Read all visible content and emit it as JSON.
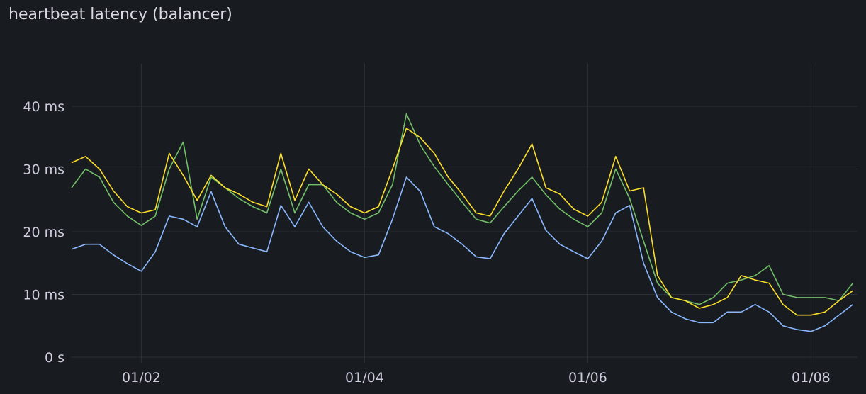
{
  "panel": {
    "title": "heartbeat latency (balancer)"
  },
  "chart_data": {
    "type": "line",
    "title": "heartbeat latency (balancer)",
    "xlabel": "",
    "ylabel": "",
    "unit": "ms",
    "ylim": [
      0,
      46
    ],
    "yticks": [
      {
        "value": 0,
        "label": "0 s"
      },
      {
        "value": 10,
        "label": "10 ms"
      },
      {
        "value": 20,
        "label": "20 ms"
      },
      {
        "value": 30,
        "label": "30 ms"
      },
      {
        "value": 40,
        "label": "40 ms"
      }
    ],
    "xticks": [
      {
        "value": "01/02 00:00",
        "label": "01/02"
      },
      {
        "value": "01/04 00:00",
        "label": "01/04"
      },
      {
        "value": "01/06 00:00",
        "label": "01/06"
      },
      {
        "value": "01/08 00:00",
        "label": "01/08"
      }
    ],
    "xlim": [
      "01/01 09:00",
      "01/08 10:00"
    ],
    "grid": true,
    "legend": "none",
    "x_start": "01/01 09:00",
    "x_step_hours": 3,
    "series": [
      {
        "color": "#73bf69",
        "values": [
          27,
          30,
          28.7,
          24.7,
          22.5,
          21,
          22.5,
          30,
          34.3,
          22,
          28.7,
          27,
          25.3,
          24,
          23,
          30,
          23,
          27.5,
          27.5,
          24.7,
          23,
          22,
          23,
          27.5,
          38.8,
          33.8,
          30.4,
          27.5,
          24.7,
          22,
          21.4,
          24,
          26.5,
          28.7,
          25.9,
          23.6,
          22,
          20.8,
          23,
          30,
          25.3,
          18.5,
          11.8,
          9.5,
          9,
          8.4,
          9.5,
          11.8,
          12.3,
          13,
          14.6,
          10,
          9.5,
          9.5,
          9.5,
          9,
          11.8
        ]
      },
      {
        "color": "#fade2a",
        "values": [
          31,
          32,
          30,
          26.5,
          24,
          23,
          23.5,
          32.5,
          29,
          25,
          29,
          27,
          26,
          24.7,
          24,
          32.5,
          25,
          30,
          27.5,
          26,
          24,
          23,
          24,
          30,
          36.5,
          35,
          32.5,
          28.7,
          26,
          23,
          22.5,
          26.5,
          30,
          34,
          27,
          26,
          23.6,
          22.5,
          24.7,
          32,
          26.5,
          27,
          13,
          9.5,
          9,
          7.8,
          8.4,
          9.5,
          13,
          12.3,
          11.8,
          8.4,
          6.7,
          6.7,
          7.2,
          9,
          10.6
        ]
      },
      {
        "color": "#8ab8ff",
        "values": [
          17.2,
          18,
          18,
          16.3,
          14.9,
          13.7,
          16.8,
          22.5,
          22,
          20.8,
          26.4,
          20.8,
          18,
          17.4,
          16.8,
          24.2,
          20.8,
          24.7,
          20.8,
          18.5,
          16.8,
          15.9,
          16.3,
          22,
          28.7,
          26.4,
          20.8,
          19.7,
          18,
          16,
          15.7,
          19.7,
          22.5,
          25.3,
          20.2,
          18,
          16.8,
          15.7,
          18.5,
          23,
          24.2,
          15,
          9.5,
          7.2,
          6.1,
          5.5,
          5.5,
          7.2,
          7.2,
          8.4,
          7.2,
          5,
          4.4,
          4.1,
          5,
          6.7,
          8.4
        ]
      }
    ]
  }
}
